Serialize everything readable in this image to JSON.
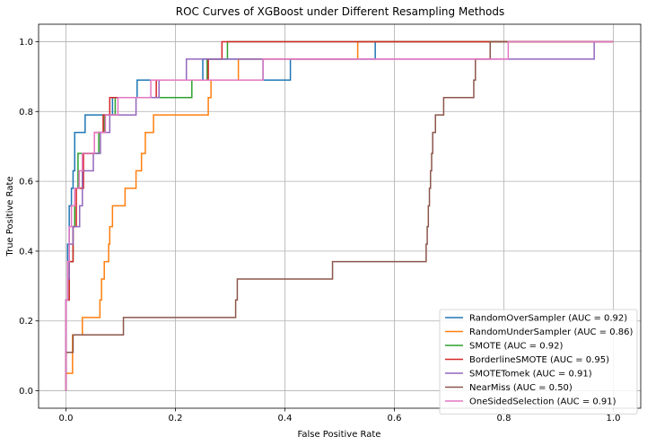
{
  "chart_data": {
    "type": "line",
    "title": "ROC Curves of XGBoost under Different Resampling Methods",
    "xlabel": "False Positive Rate",
    "ylabel": "True Positive Rate",
    "xlim": [
      -0.05,
      1.05
    ],
    "ylim": [
      -0.05,
      1.05
    ],
    "xticks": [
      "0.0",
      "0.2",
      "0.4",
      "0.6",
      "0.8",
      "1.0"
    ],
    "yticks": [
      "0.0",
      "0.2",
      "0.4",
      "0.6",
      "0.8",
      "1.0"
    ],
    "grid": true,
    "legend_position": "lower-right",
    "series": [
      {
        "name": "RandomOverSampler (AUC = 0.92)",
        "color": "#1f77b4",
        "points": [
          [
            0,
            0
          ],
          [
            0,
            0.26
          ],
          [
            0.003,
            0.26
          ],
          [
            0.003,
            0.42
          ],
          [
            0.006,
            0.42
          ],
          [
            0.006,
            0.53
          ],
          [
            0.01,
            0.53
          ],
          [
            0.01,
            0.58
          ],
          [
            0.013,
            0.58
          ],
          [
            0.013,
            0.63
          ],
          [
            0.016,
            0.63
          ],
          [
            0.016,
            0.74
          ],
          [
            0.035,
            0.74
          ],
          [
            0.035,
            0.79
          ],
          [
            0.085,
            0.79
          ],
          [
            0.085,
            0.84
          ],
          [
            0.13,
            0.84
          ],
          [
            0.13,
            0.89
          ],
          [
            0.25,
            0.89
          ],
          [
            0.25,
            0.95
          ],
          [
            0.36,
            0.95
          ],
          [
            0.36,
            0.89
          ],
          [
            0.41,
            0.89
          ],
          [
            0.41,
            0.95
          ],
          [
            0.565,
            0.95
          ],
          [
            0.565,
            1.0
          ],
          [
            1.0,
            1.0
          ]
        ]
      },
      {
        "name": "RandomUnderSampler (AUC = 0.86)",
        "color": "#ff7f0e",
        "points": [
          [
            0,
            0
          ],
          [
            0,
            0.05
          ],
          [
            0.012,
            0.05
          ],
          [
            0.012,
            0.16
          ],
          [
            0.03,
            0.16
          ],
          [
            0.03,
            0.21
          ],
          [
            0.062,
            0.21
          ],
          [
            0.062,
            0.26
          ],
          [
            0.065,
            0.26
          ],
          [
            0.065,
            0.32
          ],
          [
            0.07,
            0.32
          ],
          [
            0.07,
            0.37
          ],
          [
            0.078,
            0.37
          ],
          [
            0.078,
            0.42
          ],
          [
            0.08,
            0.42
          ],
          [
            0.08,
            0.47
          ],
          [
            0.085,
            0.47
          ],
          [
            0.085,
            0.53
          ],
          [
            0.108,
            0.53
          ],
          [
            0.108,
            0.58
          ],
          [
            0.128,
            0.58
          ],
          [
            0.128,
            0.63
          ],
          [
            0.138,
            0.63
          ],
          [
            0.138,
            0.68
          ],
          [
            0.145,
            0.68
          ],
          [
            0.145,
            0.74
          ],
          [
            0.16,
            0.74
          ],
          [
            0.16,
            0.79
          ],
          [
            0.26,
            0.79
          ],
          [
            0.26,
            0.84
          ],
          [
            0.265,
            0.84
          ],
          [
            0.265,
            0.89
          ],
          [
            0.315,
            0.89
          ],
          [
            0.315,
            0.95
          ],
          [
            0.533,
            0.95
          ],
          [
            0.533,
            1.0
          ],
          [
            1.0,
            1.0
          ]
        ]
      },
      {
        "name": "SMOTE (AUC = 0.92)",
        "color": "#2ca02c",
        "points": [
          [
            0,
            0
          ],
          [
            0,
            0.26
          ],
          [
            0.006,
            0.26
          ],
          [
            0.006,
            0.37
          ],
          [
            0.013,
            0.37
          ],
          [
            0.013,
            0.47
          ],
          [
            0.016,
            0.47
          ],
          [
            0.016,
            0.58
          ],
          [
            0.022,
            0.58
          ],
          [
            0.022,
            0.68
          ],
          [
            0.06,
            0.68
          ],
          [
            0.06,
            0.74
          ],
          [
            0.07,
            0.74
          ],
          [
            0.07,
            0.79
          ],
          [
            0.09,
            0.79
          ],
          [
            0.09,
            0.84
          ],
          [
            0.23,
            0.84
          ],
          [
            0.23,
            0.89
          ],
          [
            0.258,
            0.89
          ],
          [
            0.258,
            0.95
          ],
          [
            0.295,
            0.95
          ],
          [
            0.295,
            1.0
          ],
          [
            1.0,
            1.0
          ]
        ]
      },
      {
        "name": "BorderlineSMOTE (AUC = 0.95)",
        "color": "#d62728",
        "points": [
          [
            0,
            0
          ],
          [
            0,
            0.26
          ],
          [
            0.006,
            0.26
          ],
          [
            0.006,
            0.37
          ],
          [
            0.013,
            0.37
          ],
          [
            0.013,
            0.47
          ],
          [
            0.019,
            0.47
          ],
          [
            0.019,
            0.58
          ],
          [
            0.032,
            0.58
          ],
          [
            0.032,
            0.68
          ],
          [
            0.052,
            0.68
          ],
          [
            0.052,
            0.74
          ],
          [
            0.068,
            0.74
          ],
          [
            0.068,
            0.79
          ],
          [
            0.08,
            0.79
          ],
          [
            0.08,
            0.84
          ],
          [
            0.165,
            0.84
          ],
          [
            0.165,
            0.89
          ],
          [
            0.26,
            0.89
          ],
          [
            0.26,
            0.95
          ],
          [
            0.285,
            0.95
          ],
          [
            0.285,
            1.0
          ],
          [
            1.0,
            1.0
          ]
        ]
      },
      {
        "name": "SMOTETomek (AUC = 0.91)",
        "color": "#9467bd",
        "points": [
          [
            0,
            0
          ],
          [
            0,
            0.26
          ],
          [
            0.003,
            0.26
          ],
          [
            0.003,
            0.32
          ],
          [
            0.006,
            0.32
          ],
          [
            0.006,
            0.42
          ],
          [
            0.013,
            0.42
          ],
          [
            0.013,
            0.47
          ],
          [
            0.025,
            0.47
          ],
          [
            0.025,
            0.53
          ],
          [
            0.03,
            0.53
          ],
          [
            0.03,
            0.63
          ],
          [
            0.05,
            0.63
          ],
          [
            0.05,
            0.68
          ],
          [
            0.063,
            0.68
          ],
          [
            0.063,
            0.74
          ],
          [
            0.08,
            0.74
          ],
          [
            0.08,
            0.79
          ],
          [
            0.128,
            0.79
          ],
          [
            0.128,
            0.84
          ],
          [
            0.17,
            0.84
          ],
          [
            0.17,
            0.89
          ],
          [
            0.22,
            0.89
          ],
          [
            0.22,
            0.95
          ],
          [
            0.965,
            0.95
          ],
          [
            0.965,
            1.0
          ],
          [
            1.0,
            1.0
          ]
        ]
      },
      {
        "name": "NearMiss (AUC = 0.50)",
        "color": "#8c564b",
        "points": [
          [
            0,
            0
          ],
          [
            0,
            0.11
          ],
          [
            0.013,
            0.11
          ],
          [
            0.013,
            0.16
          ],
          [
            0.105,
            0.16
          ],
          [
            0.105,
            0.21
          ],
          [
            0.31,
            0.21
          ],
          [
            0.31,
            0.26
          ],
          [
            0.313,
            0.26
          ],
          [
            0.313,
            0.32
          ],
          [
            0.487,
            0.32
          ],
          [
            0.487,
            0.37
          ],
          [
            0.658,
            0.37
          ],
          [
            0.658,
            0.42
          ],
          [
            0.66,
            0.42
          ],
          [
            0.66,
            0.47
          ],
          [
            0.662,
            0.47
          ],
          [
            0.662,
            0.53
          ],
          [
            0.664,
            0.53
          ],
          [
            0.664,
            0.58
          ],
          [
            0.666,
            0.58
          ],
          [
            0.666,
            0.63
          ],
          [
            0.668,
            0.63
          ],
          [
            0.668,
            0.68
          ],
          [
            0.67,
            0.68
          ],
          [
            0.67,
            0.74
          ],
          [
            0.675,
            0.74
          ],
          [
            0.675,
            0.79
          ],
          [
            0.69,
            0.79
          ],
          [
            0.69,
            0.84
          ],
          [
            0.745,
            0.84
          ],
          [
            0.745,
            0.89
          ],
          [
            0.748,
            0.89
          ],
          [
            0.748,
            0.95
          ],
          [
            0.775,
            0.95
          ],
          [
            0.775,
            1.0
          ],
          [
            1.0,
            1.0
          ]
        ]
      },
      {
        "name": "OneSidedSelection (AUC = 0.91)",
        "color": "#e377c2",
        "points": [
          [
            0,
            0
          ],
          [
            0,
            0.26
          ],
          [
            0.003,
            0.26
          ],
          [
            0.003,
            0.37
          ],
          [
            0.006,
            0.37
          ],
          [
            0.006,
            0.47
          ],
          [
            0.01,
            0.47
          ],
          [
            0.01,
            0.53
          ],
          [
            0.016,
            0.53
          ],
          [
            0.016,
            0.58
          ],
          [
            0.024,
            0.58
          ],
          [
            0.024,
            0.63
          ],
          [
            0.03,
            0.63
          ],
          [
            0.03,
            0.68
          ],
          [
            0.052,
            0.68
          ],
          [
            0.052,
            0.74
          ],
          [
            0.072,
            0.74
          ],
          [
            0.072,
            0.79
          ],
          [
            0.095,
            0.79
          ],
          [
            0.095,
            0.84
          ],
          [
            0.155,
            0.84
          ],
          [
            0.155,
            0.89
          ],
          [
            0.36,
            0.89
          ],
          [
            0.36,
            0.95
          ],
          [
            0.808,
            0.95
          ],
          [
            0.808,
            1.0
          ],
          [
            1.0,
            1.0
          ]
        ]
      }
    ]
  }
}
